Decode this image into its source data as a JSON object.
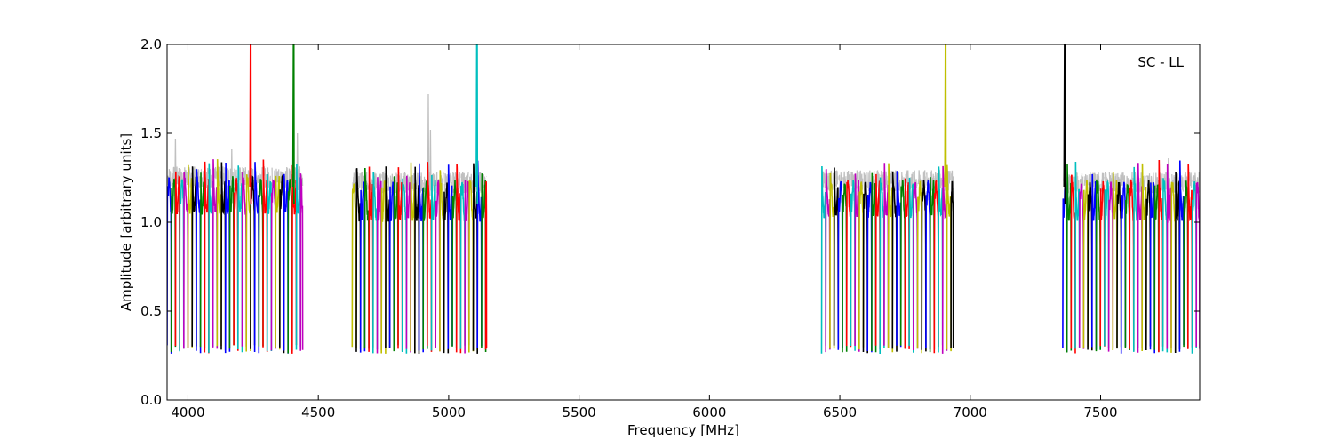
{
  "chart_data": {
    "type": "line",
    "xlabel": "Frequency [MHz]",
    "ylabel": "Amplitude [arbitrary units]",
    "annotation": "SC - LL",
    "xlim": [
      3920,
      7880
    ],
    "ylim": [
      0.0,
      2.0
    ],
    "xticks": [
      4000,
      4500,
      5000,
      5500,
      6000,
      6500,
      7000,
      7500
    ],
    "xtick_labels": [
      "4000",
      "4500",
      "5000",
      "5500",
      "6000",
      "6500",
      "7000",
      "7500"
    ],
    "yticks": [
      0.0,
      0.5,
      1.0,
      1.5,
      2.0
    ],
    "ytick_labels": [
      "0.0",
      "0.5",
      "1.0",
      "1.5",
      "2.0"
    ],
    "grid": false,
    "legend": "none",
    "color_cycle": [
      "#0000ff",
      "#008000",
      "#ff0000",
      "#00bfbf",
      "#bf00bf",
      "#bfbf00",
      "#000000"
    ],
    "reference_color": "#c0c0c0",
    "bands": [
      {
        "start": 3920,
        "end": 4440,
        "channel_width": 16,
        "mean": 1.15,
        "amp": 0.18,
        "dip": 0.26
      },
      {
        "start": 4630,
        "end": 5145,
        "channel_width": 16,
        "mean": 1.12,
        "amp": 0.2,
        "dip": 0.26
      },
      {
        "start": 6430,
        "end": 6935,
        "channel_width": 16,
        "mean": 1.13,
        "amp": 0.18,
        "dip": 0.26
      },
      {
        "start": 7355,
        "end": 7880,
        "channel_width": 16,
        "mean": 1.12,
        "amp": 0.2,
        "dip": 0.26
      }
    ],
    "spikes": [
      {
        "x": 4240,
        "y_max": 2.0,
        "color": "#ff0000"
      },
      {
        "x": 4405,
        "y_max": 2.0,
        "color": "#008000"
      },
      {
        "x": 5108,
        "y_max": 2.0,
        "color": "#00bfbf"
      },
      {
        "x": 6905,
        "y_max": 2.0,
        "color": "#bfbf00"
      },
      {
        "x": 7362,
        "y_max": 2.0,
        "color": "#000000"
      }
    ],
    "reference_peaks": [
      {
        "x": 3952,
        "y": 1.47
      },
      {
        "x": 4168,
        "y": 1.41
      },
      {
        "x": 4420,
        "y": 1.5
      },
      {
        "x": 4922,
        "y": 1.72
      },
      {
        "x": 4930,
        "y": 1.52
      },
      {
        "x": 7760,
        "y": 1.36
      }
    ]
  }
}
